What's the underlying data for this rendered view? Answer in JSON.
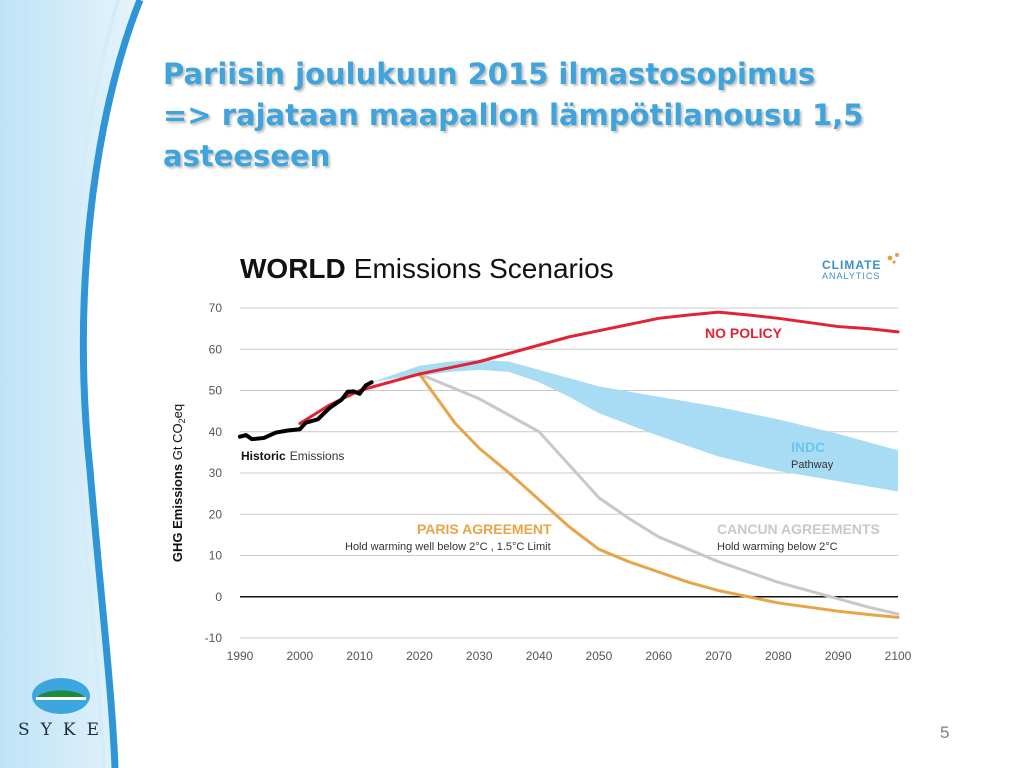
{
  "slide": {
    "title": "Pariisin joulukuun 2015 ilmastosopimus\n=>  rajataan maapallon lämpötilanousu 1,5 asteeseen",
    "page_number": "5",
    "logo_text": "SYKE",
    "logo_icon": "syke-logo-icon",
    "accent_color": "#3fa3dc"
  },
  "chart_data": {
    "type": "line",
    "title_bold": "WORLD",
    "title_rest": "Emissions Scenarios",
    "brand": "CLIMATE ANALYTICS",
    "ylabel": "GHG Emissions Gt CO2eq",
    "ylim": [
      -10,
      70
    ],
    "yticks": [
      70,
      60,
      50,
      40,
      30,
      20,
      10,
      0,
      -10
    ],
    "xlim": [
      1990,
      2100
    ],
    "xticks": [
      1990,
      2000,
      2010,
      2020,
      2030,
      2040,
      2050,
      2060,
      2070,
      2080,
      2090,
      2100
    ],
    "grid": true,
    "series": [
      {
        "name": "Historic Emissions",
        "label_bold": "Historic",
        "label_rest": "Emissions",
        "color": "#000000",
        "x": [
          1990,
          1991,
          1992,
          1994,
          1996,
          1998,
          2000,
          2001,
          2003,
          2005,
          2007,
          2008,
          2009,
          2010,
          2011,
          2012
        ],
        "y": [
          38.8,
          39.2,
          38.2,
          38.5,
          39.8,
          40.3,
          40.6,
          42.2,
          43,
          45.8,
          47.8,
          49.7,
          49.8,
          49.2,
          51.2,
          52
        ]
      },
      {
        "name": "NO POLICY",
        "label": "NO POLICY",
        "color": "#e02434",
        "x": [
          2000,
          2005,
          2010,
          2015,
          2020,
          2025,
          2030,
          2035,
          2040,
          2045,
          2050,
          2055,
          2060,
          2065,
          2070,
          2075,
          2080,
          2085,
          2090,
          2095,
          2100
        ],
        "y": [
          42,
          46.5,
          50,
          52,
          54,
          55.5,
          57,
          59,
          61,
          63,
          64.5,
          66,
          67.5,
          68.3,
          69,
          68.3,
          67.5,
          66.5,
          65.5,
          65,
          64.2
        ]
      },
      {
        "name": "PARIS AGREEMENT",
        "label": "PARIS AGREEMENT",
        "sublabel": "Hold warming well below 2°C , 1.5°C Limit",
        "color": "#e8a446",
        "x": [
          2020,
          2023,
          2026,
          2030,
          2035,
          2040,
          2045,
          2050,
          2055,
          2060,
          2065,
          2070,
          2075,
          2080,
          2085,
          2090,
          2095,
          2100
        ],
        "y": [
          54,
          48,
          42,
          36,
          30,
          23.5,
          17,
          11.5,
          8.5,
          6,
          3.5,
          1.5,
          0,
          -1.5,
          -2.5,
          -3.5,
          -4.3,
          -5
        ]
      },
      {
        "name": "CANCUN AGREEMENTS",
        "label": "CANCUN AGREEMENTS",
        "sublabel": "Hold warming below 2°C",
        "color": "#c8c8c8",
        "x": [
          2020,
          2025,
          2030,
          2035,
          2040,
          2045,
          2050,
          2055,
          2060,
          2065,
          2070,
          2075,
          2080,
          2085,
          2090,
          2095,
          2100
        ],
        "y": [
          54,
          51,
          48,
          44,
          40,
          32,
          24,
          19,
          14.5,
          11.5,
          8.5,
          6,
          3.5,
          1.5,
          -0.5,
          -2.5,
          -4.2
        ]
      }
    ],
    "band": {
      "name": "INDC Pathway",
      "label": "INDC",
      "sublabel": "Pathway",
      "color": "#a8dcf4",
      "label_color": "#6cc6ee",
      "x": [
        2012,
        2016,
        2020,
        2025,
        2030,
        2035,
        2040,
        2045,
        2050,
        2060,
        2070,
        2080,
        2090,
        2100
      ],
      "upper": [
        52,
        54,
        56,
        57,
        57.5,
        57,
        55,
        53,
        51,
        48.5,
        46,
        43,
        39.5,
        35.5
      ],
      "lower": [
        52,
        53,
        53.5,
        54.5,
        55,
        54.5,
        52,
        48.5,
        44.5,
        39,
        34,
        30.5,
        28,
        25.5
      ]
    }
  }
}
